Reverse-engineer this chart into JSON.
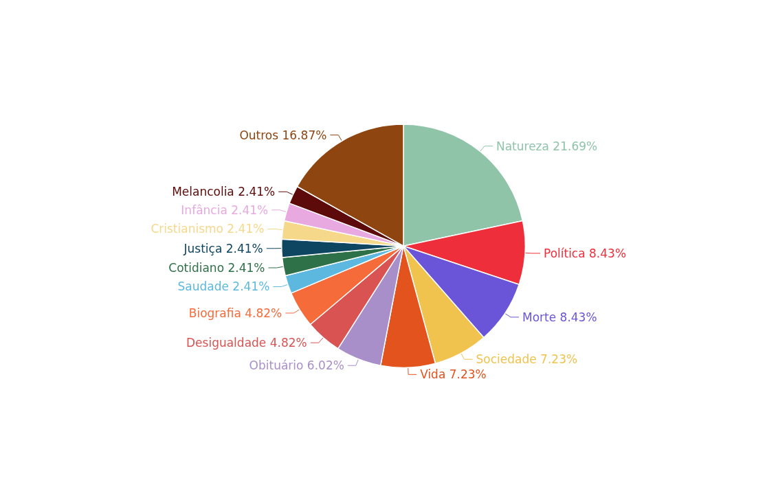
{
  "chart_data": {
    "type": "pie",
    "categories": [
      "Natureza",
      "Política",
      "Morte",
      "Sociedade",
      "Vida",
      "Obituário",
      "Desigualdade",
      "Biografia",
      "Saudade",
      "Cotidiano",
      "Justiça",
      "Cristianismo",
      "Infância",
      "Melancolia",
      "Outros"
    ],
    "values": [
      21.69,
      8.43,
      8.43,
      7.23,
      7.23,
      6.02,
      4.82,
      4.82,
      2.41,
      2.41,
      2.41,
      2.41,
      2.41,
      2.41,
      16.87
    ],
    "value_labels": [
      "21.69%",
      "8.43%",
      "8.43%",
      "7.23%",
      "7.23%",
      "6.02%",
      "4.82%",
      "4.82%",
      "2.41%",
      "2.41%",
      "2.41%",
      "2.41%",
      "2.41%",
      "2.41%",
      "16.87%"
    ],
    "colors": [
      "#8fc4a8",
      "#ee2e3a",
      "#6a55d8",
      "#f0c24e",
      "#e2531e",
      "#a98fc9",
      "#d95353",
      "#f56b3a",
      "#5db8e0",
      "#2e7047",
      "#0e4560",
      "#f5d88a",
      "#e8a9e0",
      "#5c0a0a",
      "#8e4510"
    ],
    "legend": false
  }
}
